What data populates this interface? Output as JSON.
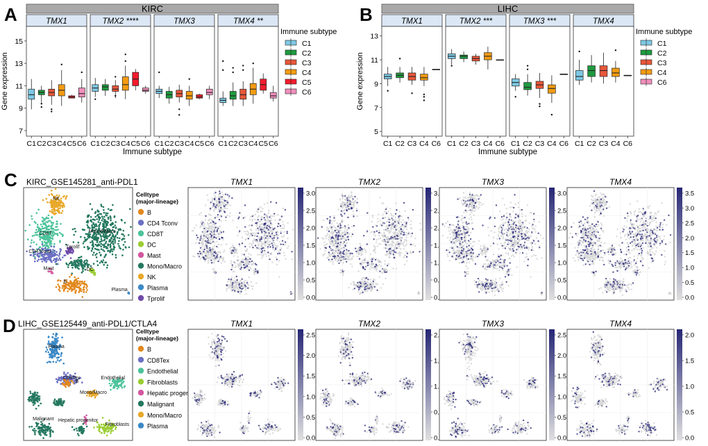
{
  "panel_letters": {
    "a": "A",
    "b": "B",
    "c": "C",
    "d": "D"
  },
  "colors": {
    "strip_fill": "#a9a9a9",
    "facet_header_fill": "#dbe7f5",
    "expr_high": "#262675",
    "expr_low": "#d9d9d9",
    "subtype": {
      "C1": "#7ec8e3",
      "C2": "#1f9a3f",
      "C3": "#e8573a",
      "C4": "#f39c12",
      "C5": "#f21c2c",
      "C6": "#f08fbc"
    }
  },
  "immune_legend": {
    "title": "Immune subtype",
    "kirc_items": [
      "C1",
      "C2",
      "C3",
      "C4",
      "C5",
      "C6"
    ],
    "lihc_items": [
      "C1",
      "C2",
      "C3",
      "C4",
      "C6"
    ]
  },
  "celltype_legend_title": [
    "Celltype",
    "(major-lineage)"
  ],
  "chart_data": [
    {
      "id": "A",
      "type": "box",
      "title": "KIRC",
      "ylabel": "Gene expression",
      "xlabel": "Immune subtype",
      "ylim": [
        6.5,
        16.3
      ],
      "yticks": [
        7,
        9,
        11,
        13,
        15
      ],
      "categories": [
        "C1",
        "C2",
        "C3",
        "C4",
        "C5",
        "C6"
      ],
      "genes": [
        {
          "name": "TMX1",
          "sig": "",
          "boxes": [
            {
              "cat": "C1",
              "lo": 8.9,
              "q1": 9.8,
              "med": 10.2,
              "q3": 10.7,
              "hi": 11.6
            },
            {
              "cat": "C2",
              "lo": 9.5,
              "q1": 10.2,
              "med": 10.4,
              "q3": 10.6,
              "hi": 11.0,
              "out": [
                9.1,
                9.4
              ]
            },
            {
              "cat": "C3",
              "lo": 9.3,
              "q1": 10.1,
              "med": 10.4,
              "q3": 10.7,
              "hi": 11.5,
              "out": [
                8.7,
                8.9
              ]
            },
            {
              "cat": "C4",
              "lo": 9.2,
              "q1": 10.1,
              "med": 10.6,
              "q3": 11.1,
              "hi": 12.4,
              "out": [
                12.9
              ]
            },
            {
              "cat": "C5",
              "lo": 9.9,
              "q1": 9.9,
              "med": 10.0,
              "q3": 10.1,
              "hi": 10.2
            },
            {
              "cat": "C6",
              "lo": 9.5,
              "q1": 10.0,
              "med": 10.3,
              "q3": 10.8,
              "hi": 11.6,
              "out": [
                12.2
              ]
            }
          ]
        },
        {
          "name": "TMX2",
          "sig": "****",
          "boxes": [
            {
              "cat": "C1",
              "lo": 10.0,
              "q1": 10.5,
              "med": 10.8,
              "q3": 11.1,
              "hi": 11.7,
              "out": [
                9.8
              ]
            },
            {
              "cat": "C2",
              "lo": 10.1,
              "q1": 10.6,
              "med": 10.9,
              "q3": 11.1,
              "hi": 11.6
            },
            {
              "cat": "C3",
              "lo": 9.9,
              "q1": 10.5,
              "med": 10.7,
              "q3": 11.0,
              "hi": 11.5,
              "out": [
                10.1,
                11.8
              ]
            },
            {
              "cat": "C4",
              "lo": 9.8,
              "q1": 10.6,
              "med": 11.1,
              "q3": 11.8,
              "hi": 12.8,
              "out": [
                13.2,
                13.8
              ]
            },
            {
              "cat": "C5",
              "lo": 10.6,
              "q1": 11.0,
              "med": 11.6,
              "q3": 12.2,
              "hi": 12.5
            },
            {
              "cat": "C6",
              "lo": 10.3,
              "q1": 10.5,
              "med": 10.6,
              "q3": 10.8,
              "hi": 11.0
            }
          ]
        },
        {
          "name": "TMX3",
          "sig": "",
          "boxes": [
            {
              "cat": "C1",
              "lo": 9.9,
              "q1": 10.3,
              "med": 10.5,
              "q3": 10.7,
              "hi": 11.0,
              "out": [
                12.2
              ]
            },
            {
              "cat": "C2",
              "lo": 9.4,
              "q1": 9.9,
              "med": 10.2,
              "q3": 10.5,
              "hi": 10.9
            },
            {
              "cat": "C3",
              "lo": 9.5,
              "q1": 10.0,
              "med": 10.3,
              "q3": 10.6,
              "hi": 11.1,
              "out": [
                8.4,
                8.9
              ]
            },
            {
              "cat": "C4",
              "lo": 9.2,
              "q1": 9.8,
              "med": 10.1,
              "q3": 10.5,
              "hi": 11.0,
              "out": [
                11.6
              ]
            },
            {
              "cat": "C5",
              "lo": 9.8,
              "q1": 9.9,
              "med": 10.0,
              "q3": 10.2,
              "hi": 10.3
            },
            {
              "cat": "C6",
              "lo": 9.8,
              "q1": 10.2,
              "med": 10.4,
              "q3": 10.7,
              "hi": 11.0
            }
          ]
        },
        {
          "name": "TMX4",
          "sig": "**",
          "boxes": [
            {
              "cat": "C1",
              "lo": 9.2,
              "q1": 9.5,
              "med": 9.7,
              "q3": 9.9,
              "hi": 10.5,
              "out": [
                12.4,
                13.2
              ]
            },
            {
              "cat": "C2",
              "lo": 9.2,
              "q1": 9.8,
              "med": 10.1,
              "q3": 10.5,
              "hi": 11.3,
              "out": [
                12.2,
                12.6
              ]
            },
            {
              "cat": "C3",
              "lo": 9.2,
              "q1": 9.8,
              "med": 10.2,
              "q3": 10.7,
              "hi": 11.4,
              "out": [
                12.4,
                12.8
              ]
            },
            {
              "cat": "C4",
              "lo": 9.4,
              "q1": 10.2,
              "med": 10.7,
              "q3": 11.2,
              "hi": 12.6,
              "out": [
                13.0
              ]
            },
            {
              "cat": "C5",
              "lo": 10.3,
              "q1": 10.6,
              "med": 11.1,
              "q3": 11.6,
              "hi": 12.1
            },
            {
              "cat": "C6",
              "lo": 9.6,
              "q1": 9.9,
              "med": 10.1,
              "q3": 10.4,
              "hi": 11.0
            }
          ]
        }
      ]
    },
    {
      "id": "B",
      "type": "box",
      "title": "LIHC",
      "ylabel": "Gene expression",
      "xlabel": "Immune subtype",
      "ylim": [
        4.6,
        13.8
      ],
      "yticks": [
        5,
        7,
        9,
        11,
        13
      ],
      "categories": [
        "C1",
        "C2",
        "C3",
        "C4",
        "C6"
      ],
      "genes": [
        {
          "name": "TMX1",
          "sig": "",
          "boxes": [
            {
              "cat": "C1",
              "lo": 8.8,
              "q1": 9.4,
              "med": 9.6,
              "q3": 9.8,
              "hi": 10.4,
              "out": [
                8.4
              ]
            },
            {
              "cat": "C2",
              "lo": 9.1,
              "q1": 9.5,
              "med": 9.7,
              "q3": 9.9,
              "hi": 10.4,
              "out": [
                11.1
              ]
            },
            {
              "cat": "C3",
              "lo": 8.9,
              "q1": 9.3,
              "med": 9.6,
              "q3": 9.9,
              "hi": 10.4,
              "out": [
                8.2
              ]
            },
            {
              "cat": "C4",
              "lo": 8.8,
              "q1": 9.3,
              "med": 9.5,
              "q3": 9.8,
              "hi": 10.4,
              "out": [
                7.6,
                7.9,
                8.1
              ]
            },
            {
              "cat": "C6",
              "lo": 10.2,
              "q1": 10.2,
              "med": 10.2,
              "q3": 10.2,
              "hi": 10.2
            }
          ]
        },
        {
          "name": "TMX2",
          "sig": "***",
          "boxes": [
            {
              "cat": "C1",
              "lo": 10.6,
              "q1": 11.1,
              "med": 11.3,
              "q3": 11.5,
              "hi": 11.9,
              "out": [
                10.5
              ]
            },
            {
              "cat": "C2",
              "lo": 10.8,
              "q1": 11.1,
              "med": 11.3,
              "q3": 11.4,
              "hi": 11.7
            },
            {
              "cat": "C3",
              "lo": 10.6,
              "q1": 10.9,
              "med": 11.1,
              "q3": 11.3,
              "hi": 11.5
            },
            {
              "cat": "C4",
              "lo": 10.2,
              "q1": 11.0,
              "med": 11.3,
              "q3": 11.6,
              "hi": 12.1
            },
            {
              "cat": "C6",
              "lo": 11.0,
              "q1": 11.0,
              "med": 11.0,
              "q3": 11.0,
              "hi": 11.0
            }
          ]
        },
        {
          "name": "TMX3",
          "sig": "***",
          "boxes": [
            {
              "cat": "C1",
              "lo": 8.4,
              "q1": 8.8,
              "med": 9.1,
              "q3": 9.4,
              "hi": 9.8,
              "out": [
                7.9
              ]
            },
            {
              "cat": "C2",
              "lo": 8.0,
              "q1": 8.5,
              "med": 8.7,
              "q3": 9.1,
              "hi": 9.8,
              "out": [
                10.2,
                10.5
              ]
            },
            {
              "cat": "C3",
              "lo": 7.8,
              "q1": 8.6,
              "med": 8.9,
              "q3": 9.2,
              "hi": 9.9,
              "out": [
                7.1,
                7.3
              ]
            },
            {
              "cat": "C4",
              "lo": 7.4,
              "q1": 8.2,
              "med": 8.6,
              "q3": 8.9,
              "hi": 9.7,
              "out": [
                6.4
              ]
            },
            {
              "cat": "C6",
              "lo": 9.8,
              "q1": 9.8,
              "med": 9.8,
              "q3": 9.8,
              "hi": 9.8
            }
          ]
        },
        {
          "name": "TMX4",
          "sig": "",
          "boxes": [
            {
              "cat": "C1",
              "lo": 8.9,
              "q1": 9.3,
              "med": 9.6,
              "q3": 10.1,
              "hi": 11.0,
              "out": [
                11.7
              ]
            },
            {
              "cat": "C2",
              "lo": 9.1,
              "q1": 9.6,
              "med": 10.1,
              "q3": 10.5,
              "hi": 11.4
            },
            {
              "cat": "C3",
              "lo": 9.0,
              "q1": 9.6,
              "med": 10.1,
              "q3": 10.5,
              "hi": 11.6
            },
            {
              "cat": "C4",
              "lo": 9.1,
              "q1": 9.6,
              "med": 9.9,
              "q3": 10.3,
              "hi": 10.9,
              "out": [
                11.8
              ]
            },
            {
              "cat": "C6",
              "lo": 9.7,
              "q1": 9.7,
              "med": 9.7,
              "q3": 9.7,
              "hi": 9.7
            }
          ]
        }
      ]
    },
    {
      "id": "C",
      "type": "scatter",
      "title": "KIRC_GSE145281_anti-PDL1",
      "celltypes": [
        {
          "name": "B",
          "color": "#e2891f"
        },
        {
          "name": "CD4 Tconv",
          "color": "#6a6fc2"
        },
        {
          "name": "CD8T",
          "color": "#4cc39a"
        },
        {
          "name": "DC",
          "color": "#9acd32"
        },
        {
          "name": "Mast",
          "color": "#d4569f"
        },
        {
          "name": "Mono/Macro",
          "color": "#24785f"
        },
        {
          "name": "NK",
          "color": "#e8a82a"
        },
        {
          "name": "Plasma",
          "color": "#3a88c6"
        },
        {
          "name": "Tprolif",
          "color": "#6f4aa8"
        }
      ],
      "cluster_labels": [
        "NK",
        "CD8T",
        "CD4Tconv",
        "Tprolif",
        "Mono/Macro",
        "Mast",
        "DC",
        "B",
        "Plasma"
      ],
      "feature_plots": [
        {
          "gene": "TMX1",
          "ticks": [
            "3.0",
            "2.5",
            "2.0",
            "1.5",
            "1.0",
            "0.5",
            "0.0"
          ]
        },
        {
          "gene": "TMX2",
          "ticks": [
            "3.0",
            "2.5",
            "2.0",
            "1.5",
            "1.0",
            "0.5",
            "0.0"
          ]
        },
        {
          "gene": "TMX3",
          "ticks": [
            "3.0",
            "2.5",
            "2.0",
            "1.5",
            "1.0",
            "0.5",
            "0.0"
          ]
        },
        {
          "gene": "TMX4",
          "ticks": [
            "3.5",
            "3.0",
            "2.5",
            "2.0",
            "1.5",
            "1.0",
            "0.5",
            "0.0"
          ]
        }
      ]
    },
    {
      "id": "D",
      "type": "scatter",
      "title": "LIHC_GSE125449_anti-PDL1/CTLA4",
      "celltypes": [
        {
          "name": "B",
          "color": "#e2891f"
        },
        {
          "name": "CD8Tex",
          "color": "#6a6fc2"
        },
        {
          "name": "Endothelial",
          "color": "#4cc39a"
        },
        {
          "name": "Fibroblasts",
          "color": "#9acd32"
        },
        {
          "name": "Hepatic proger",
          "color": "#d4569f"
        },
        {
          "name": "Malignant",
          "color": "#24785f"
        },
        {
          "name": "Mono/Macro",
          "color": "#e8a82a"
        },
        {
          "name": "Plasma",
          "color": "#3a88c6"
        }
      ],
      "cluster_labels": [
        "Plasma",
        "CD8Tex",
        "B",
        "Endothelial",
        "Mono/Macro",
        "Malignant",
        "Hepatic progenitor",
        "Fibroblasts"
      ],
      "feature_plots": [
        {
          "gene": "TMX1",
          "ticks": [
            "2.5",
            "2.0",
            "1.5",
            "1.0",
            "0.5",
            "0.0"
          ]
        },
        {
          "gene": "TMX2",
          "ticks": [
            "2.0",
            "1.5",
            "1.0",
            "0.5",
            "0.0"
          ]
        },
        {
          "gene": "TMX3",
          "ticks": [
            "2.5",
            "2.0",
            "1.5",
            "1.0",
            "0.5",
            "0.0"
          ]
        },
        {
          "gene": "TMX4",
          "ticks": [
            "2.0",
            "1.5",
            "1.0",
            "0.5",
            "0.0"
          ]
        }
      ]
    }
  ]
}
